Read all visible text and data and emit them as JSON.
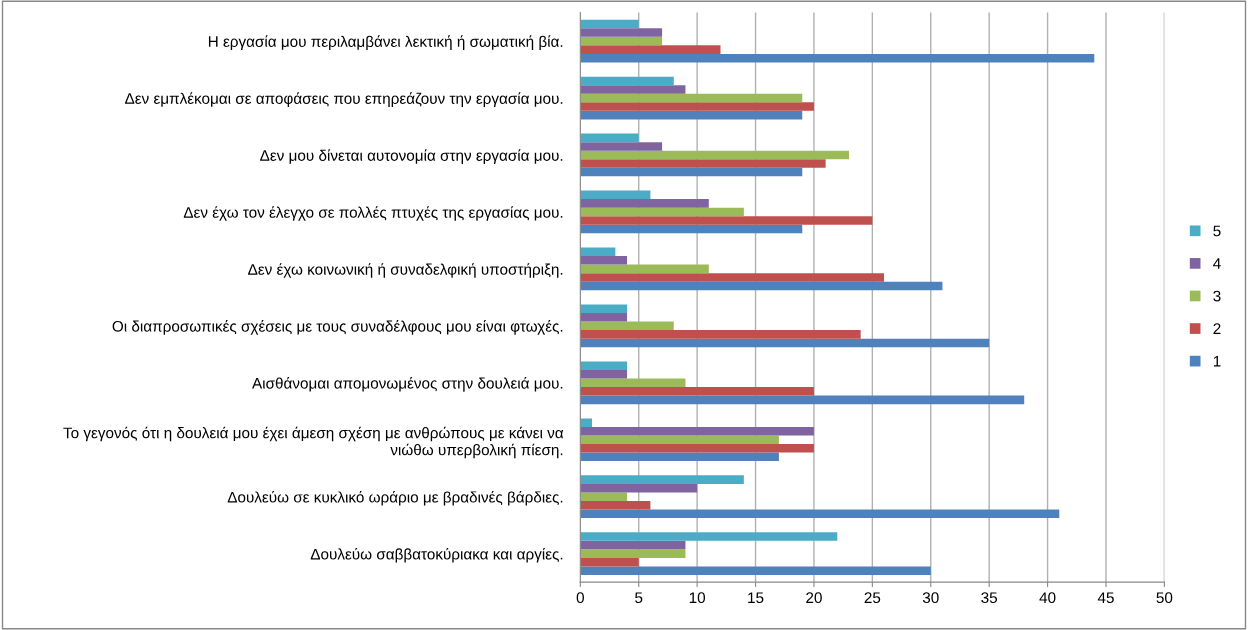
{
  "chart_data": {
    "type": "bar",
    "orientation": "horizontal",
    "categories": [
      "Η εργασία μου περιλαμβάνει λεκτική ή σωματική βία.",
      "Δεν εμπλέκομαι σε αποφάσεις που επηρεάζουν την εργασία μου.",
      "Δεν μου δίνεται αυτονομία στην εργασία μου.",
      "Δεν έχω τον έλεγχο σε πολλές πτυχές της εργασίας μου.",
      "Δεν έχω κοινωνική ή συναδελφική υποστήριξη.",
      "Οι διαπροσωπικές σχέσεις με τους συναδέλφους μου είναι φτωχές.",
      "Αισθάνομαι απομονωμένος στην δουλειά μου.",
      "Το γεγονός ότι η δουλειά μου έχει άμεση σχέση με ανθρώπους με κάνει να νιώθω υπερβολική πίεση.",
      "Δουλεύω σε κυκλικό ωράριο με βραδινές βάρδιες.",
      "Δουλεύω σαββατοκύριακα και αργίες."
    ],
    "series": [
      {
        "name": "1",
        "color": "#4f81bd",
        "values": [
          44,
          19,
          19,
          19,
          31,
          35,
          38,
          17,
          41,
          30
        ]
      },
      {
        "name": "2",
        "color": "#c0504d",
        "values": [
          12,
          20,
          21,
          25,
          26,
          24,
          20,
          20,
          6,
          5
        ]
      },
      {
        "name": "3",
        "color": "#9bbb59",
        "values": [
          7,
          19,
          23,
          14,
          11,
          8,
          9,
          17,
          4,
          9
        ]
      },
      {
        "name": "4",
        "color": "#8064a2",
        "values": [
          7,
          9,
          7,
          11,
          4,
          4,
          4,
          20,
          10,
          9
        ]
      },
      {
        "name": "5",
        "color": "#4bacc6",
        "values": [
          5,
          8,
          5,
          6,
          3,
          4,
          4,
          1,
          14,
          22
        ]
      }
    ],
    "xlim": [
      0,
      50
    ],
    "xticks": [
      0,
      5,
      10,
      15,
      20,
      25,
      30,
      35,
      40,
      45,
      50
    ],
    "grid": "x",
    "legend": "right"
  }
}
